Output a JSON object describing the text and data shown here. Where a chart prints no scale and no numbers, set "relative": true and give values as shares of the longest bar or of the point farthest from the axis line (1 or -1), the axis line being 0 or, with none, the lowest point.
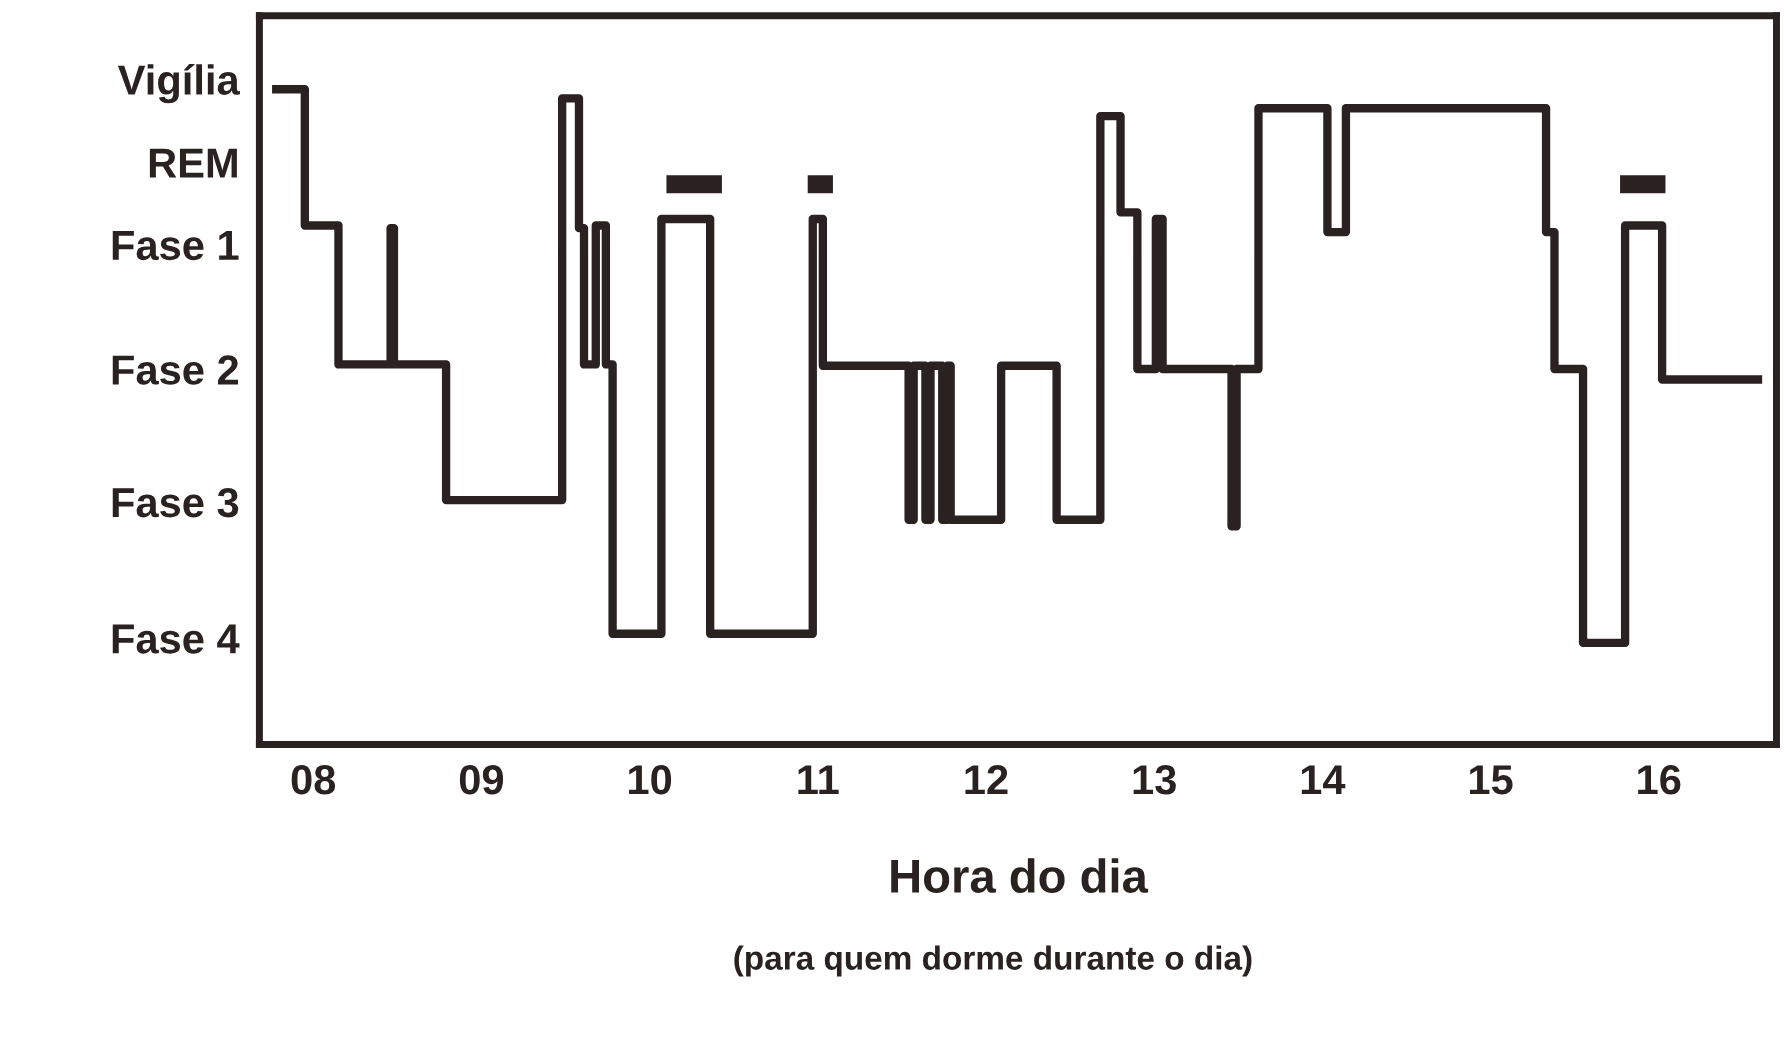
{
  "chart_data": {
    "type": "step",
    "relative": true,
    "xlabel": "Hora do dia",
    "annotations": [
      "Vigília",
      "REM",
      "Fase 1",
      "Fase 2",
      "Fase 3",
      "Fase 4",
      "(para quem dorme durante o dia)"
    ],
    "xlim": [
      7.68,
      16.7
    ],
    "xticks": [
      {
        "value": 8,
        "label": "08"
      },
      {
        "value": 9,
        "label": "09"
      },
      {
        "value": 10,
        "label": "10"
      },
      {
        "value": 11,
        "label": "11"
      },
      {
        "value": 12,
        "label": "12"
      },
      {
        "value": 13,
        "label": "13"
      },
      {
        "value": 14,
        "label": "14"
      },
      {
        "value": 15,
        "label": "15"
      },
      {
        "value": 16,
        "label": "16"
      }
    ],
    "series": [
      {
        "color": "#2a2220",
        "x": [
          7.78,
          7.95,
          8.15,
          8.46,
          8.48,
          8.79,
          9.48,
          9.58,
          9.61,
          9.68,
          9.74,
          9.78,
          10.07,
          10.36,
          10.97,
          11.03,
          11.54,
          11.57,
          11.64,
          11.67,
          11.74,
          11.77,
          11.79,
          12.09,
          12.42,
          12.68,
          12.8,
          12.9,
          13.01,
          13.05,
          13.46,
          13.49,
          13.62,
          14.03,
          14.14,
          15.33,
          15.38,
          15.55,
          15.8,
          16.02,
          16.59
        ],
        "values": [
          1.0,
          0.792,
          0.58,
          0.788,
          0.58,
          0.373,
          0.986,
          0.788,
          0.58,
          0.792,
          0.58,
          0.169,
          0.802,
          0.169,
          0.802,
          0.578,
          0.343,
          0.578,
          0.343,
          0.578,
          0.343,
          0.578,
          0.343,
          0.578,
          0.343,
          0.959,
          0.812,
          0.573,
          0.802,
          0.573,
          0.333,
          0.573,
          0.971,
          0.782,
          0.971,
          0.782,
          0.573,
          0.155,
          0.792,
          0.557,
          0.557
        ]
      },
      {
        "type": "line",
        "color": "#2a2220",
        "x": [
          10.1,
          10.43,
          10.435,
          10.94,
          11.09,
          11.095,
          15.77,
          16.04
        ],
        "values": [
          0.855,
          0.855,
          null,
          0.855,
          0.855,
          null,
          0.855,
          0.855
        ]
      }
    ]
  }
}
